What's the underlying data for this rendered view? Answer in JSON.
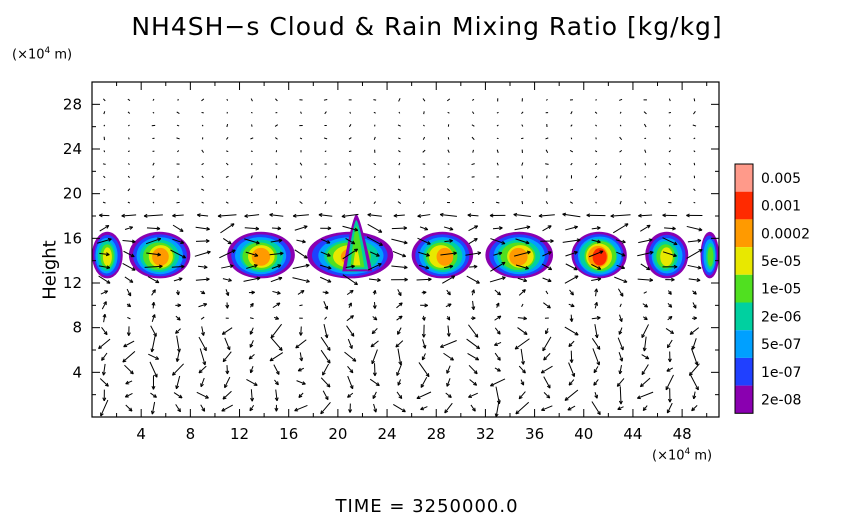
{
  "title": "NH4SH−s Cloud & Rain Mixing Ratio [kg/kg]",
  "y_unit_prefix": "(×10",
  "y_unit_exp": "4",
  "y_unit_suffix": " m)",
  "x_unit_prefix": "(×10",
  "x_unit_exp": "4",
  "x_unit_suffix": " m)",
  "footer": "TIME  =  3250000.0",
  "chart_data": {
    "type": "heatmap",
    "title": "NH4SH−s Cloud & Rain Mixing Ratio [kg/kg]",
    "ylabel": "Height",
    "xlim": [
      0,
      51
    ],
    "ylim": [
      0,
      30
    ],
    "x_ticks": [
      4,
      8,
      12,
      16,
      20,
      24,
      28,
      32,
      36,
      40,
      44,
      48
    ],
    "y_ticks": [
      4,
      8,
      12,
      16,
      20,
      24,
      28
    ],
    "colorbar": {
      "labels": [
        "0.005",
        "0.001",
        "0.0002",
        "5e-05",
        "1e-05",
        "2e-06",
        "5e-07",
        "1e-07",
        "2e-08"
      ],
      "colors": [
        "#ff9a8a",
        "#ff2a00",
        "#ff9a00",
        "#e8e800",
        "#50e020",
        "#00d0a0",
        "#00a0ff",
        "#2040ff",
        "#8a00b0"
      ]
    },
    "cloud_layer": {
      "base_km_1e4": 12.5,
      "top_km_1e4": 16.5,
      "max_top_1e4": 18.0,
      "max_top_x_1e4": 21.5,
      "cells": [
        {
          "x0": 0.0,
          "x1": 2.5,
          "peak": "5e-05"
        },
        {
          "x0": 3.0,
          "x1": 8.0,
          "peak": "0.0002"
        },
        {
          "x0": 11.0,
          "x1": 16.5,
          "peak": "0.0002"
        },
        {
          "x0": 17.5,
          "x1": 24.5,
          "peak": "0.0002"
        },
        {
          "x0": 26.0,
          "x1": 31.0,
          "peak": "0.0002"
        },
        {
          "x0": 32.0,
          "x1": 37.5,
          "peak": "0.0002"
        },
        {
          "x0": 39.0,
          "x1": 43.5,
          "peak": "0.001"
        },
        {
          "x0": 45.0,
          "x1": 48.5,
          "peak": "5e-05"
        },
        {
          "x0": 49.5,
          "x1": 51.0,
          "peak": "1e-05"
        }
      ]
    },
    "wind_vectors": "shown as arrows over the domain"
  }
}
